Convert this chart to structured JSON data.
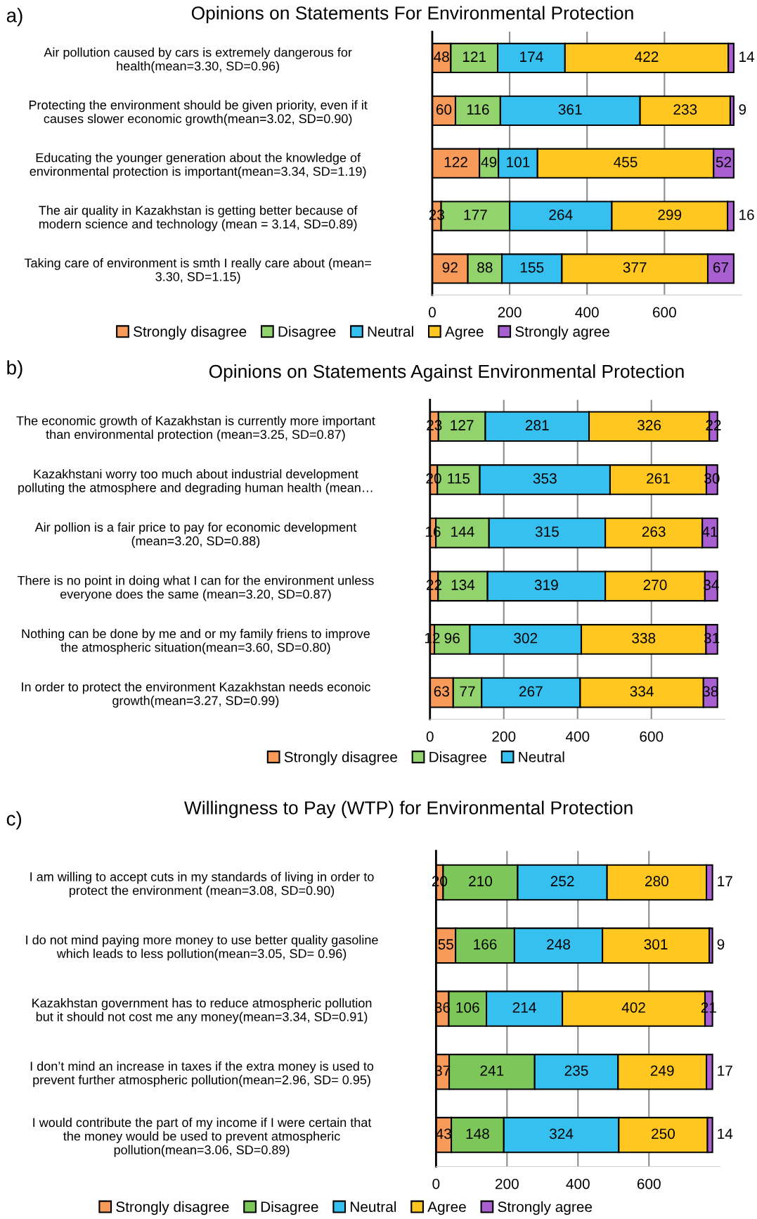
{
  "chart_data": [
    {
      "type": "bar",
      "orientation": "horizontal",
      "stacked": true,
      "title": "Opinions on Statements For Environmental Protection",
      "annotations": [
        "a)"
      ],
      "categories": [
        "Air pollution caused by cars is extremely dangerous for\nhealth(mean=3.30, SD=0.96)",
        "Protecting the environment should be given priority, even if it\ncauses slower economic growth(mean=3.02, SD=0.90)",
        "Educating the younger generation about the knowledge of\nenvironmental protection is important(mean=3.34, SD=1.19)",
        "The air quality in Kazakhstan is getting better because of\nmodern science and technology (mean = 3.14, SD=0.89)",
        "Taking care of environment is smth I really care about (mean=\n3.30, SD=1.15)"
      ],
      "series": [
        {
          "name": "Strongly disagree",
          "color": "#f79a5a",
          "values": [
            48,
            60,
            122,
            23,
            92
          ]
        },
        {
          "name": "Disagree",
          "color": "#92d36e",
          "values": [
            121,
            116,
            49,
            177,
            88
          ]
        },
        {
          "name": "Neutral",
          "color": "#35c0f0",
          "values": [
            174,
            361,
            101,
            264,
            155
          ]
        },
        {
          "name": "Agree",
          "color": "#ffc720",
          "values": [
            422,
            233,
            455,
            299,
            377
          ]
        },
        {
          "name": "Strongly agree",
          "color": "#a85fd0",
          "values": [
            14,
            9,
            52,
            16,
            67
          ]
        }
      ],
      "xlim": [
        0,
        800
      ],
      "xticks": [
        0,
        200,
        400,
        600
      ],
      "grid": "x",
      "legend": "bottom",
      "data_labels": true
    },
    {
      "type": "bar",
      "orientation": "horizontal",
      "stacked": true,
      "title": "Opinions on Statements Against Environmental Protection",
      "annotations": [
        "b)"
      ],
      "categories": [
        "The economic growth of Kazakhstan is currently more important\nthan environmental protection (mean=3.25, SD=0.87)",
        "Kazakhstani worry too much about industrial development\npolluting the atmosphere and degrading human health (mean…",
        "Air pollion is a fair price to pay for economic development\n(mean=3.20, SD=0.88)",
        "There is no point in doing what I can for the environment unless\neveryone does the same (mean=3.20, SD=0.87)",
        "Nothing can be done by me and or my family friens to improve\nthe atmospheric situation(mean=3.60, SD=0.80)",
        "In order to protect the environment Kazakhstan needs econoic\ngrowth(mean=3.27, SD=0.99)"
      ],
      "series": [
        {
          "name": "Strongly disagree",
          "color": "#f79a5a",
          "values": [
            23,
            20,
            16,
            22,
            12,
            63
          ]
        },
        {
          "name": "Disagree",
          "color": "#92d36e",
          "values": [
            127,
            115,
            144,
            134,
            96,
            77
          ]
        },
        {
          "name": "Neutral",
          "color": "#35c0f0",
          "values": [
            281,
            353,
            315,
            319,
            302,
            267
          ]
        },
        {
          "color": "#ffc720",
          "values": [
            326,
            261,
            263,
            270,
            338,
            334
          ]
        },
        {
          "color": "#a85fd0",
          "values": [
            22,
            30,
            41,
            34,
            31,
            38
          ]
        }
      ],
      "xlim": [
        0,
        800
      ],
      "xticks": [
        0,
        200,
        400,
        600
      ],
      "grid": "x",
      "legend": "bottom",
      "data_labels": true
    },
    {
      "type": "bar",
      "orientation": "horizontal",
      "stacked": true,
      "title": "Willingness to Pay (WTP) for Environmental Protection",
      "annotations": [
        "c)"
      ],
      "categories": [
        "I am willing to accept cuts in my standards of living in order to\nprotect the environment (mean=3.08, SD=0.90)",
        "I do not mind paying more money to use better quality gasoline\nwhich leads to less pollution(mean=3.05, SD= 0.96)",
        "Kazakhstan government has to reduce atmospheric pollution\nbut it should not cost me any money(mean=3.34, SD=0.91)",
        "I don’t mind an increase in taxes if the extra money is used to\nprevent further atmospheric pollution(mean=2.96, SD= 0.95)",
        "I would contribute the part of my income if I were certain that\nthe money would be used to prevent atmospheric\npollution(mean=3.06, SD=0.89)"
      ],
      "series": [
        {
          "name": "Strongly disagree",
          "color": "#f79a5a",
          "values": [
            20,
            55,
            36,
            37,
            43
          ]
        },
        {
          "name": "Disagree",
          "color": "#7cc65a",
          "values": [
            210,
            166,
            106,
            241,
            148
          ]
        },
        {
          "name": "Neutral",
          "color": "#35c0f0",
          "values": [
            252,
            248,
            214,
            235,
            324
          ]
        },
        {
          "name": "Agree",
          "color": "#ffc720",
          "values": [
            280,
            301,
            402,
            249,
            250
          ]
        },
        {
          "name": "Strongly agree",
          "color": "#a85fd0",
          "values": [
            17,
            9,
            21,
            17,
            14
          ]
        }
      ],
      "xlim": [
        0,
        800
      ],
      "xticks": [
        0,
        200,
        400,
        600
      ],
      "grid": "x",
      "legend": "bottom",
      "data_labels": true
    }
  ]
}
